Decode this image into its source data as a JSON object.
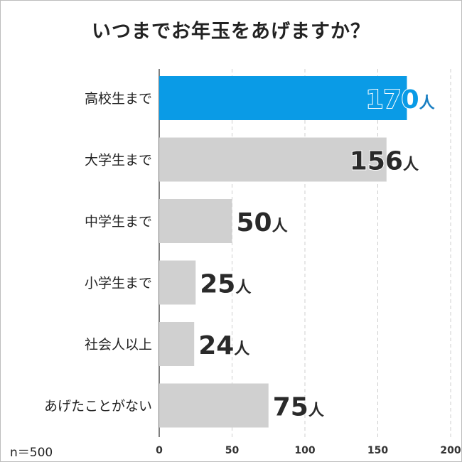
{
  "title": "いつまでお年玉をあげますか？",
  "sample_size": "n＝500",
  "colors": {
    "highlight": "#0a9be6",
    "bar": "#d0d0d0",
    "highlight_label": "#1a7fc2",
    "label": "#2a2a2a"
  },
  "chart_data": {
    "type": "bar",
    "orientation": "horizontal",
    "title": "いつまでお年玉をあげますか？",
    "categories": [
      "高校生まで",
      "大学生まで",
      "中学生まで",
      "小学生まで",
      "社会人以上",
      "あげたことがない"
    ],
    "values": [
      170,
      156,
      50,
      25,
      24,
      75
    ],
    "unit": "人",
    "highlight_index": 0,
    "xlim": [
      0,
      200
    ],
    "xticks": [
      0,
      50,
      100,
      150,
      200
    ],
    "grid": true,
    "legend": "none"
  }
}
